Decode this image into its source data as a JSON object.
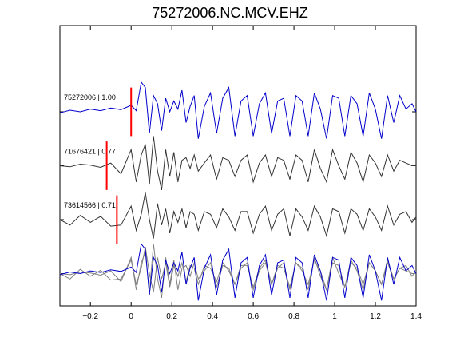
{
  "chart_data": {
    "type": "line",
    "title": "75272006.NC.MCV.EHZ",
    "xlabel": "",
    "ylabel": "",
    "xlim": [
      -0.35,
      1.4
    ],
    "ylim": [
      -0.6,
      4.6
    ],
    "x_ticks": [
      -0.2,
      0,
      0.2,
      0.4,
      0.6,
      0.8,
      1,
      1.2,
      1.4
    ],
    "x_tick_labels": [
      "−0.2",
      "0",
      "0.2",
      "0.4",
      "0.6",
      "0.8",
      "1",
      "1.2",
      "1.4"
    ],
    "y_ticks": [
      0,
      1,
      2,
      3,
      4
    ],
    "grid": false,
    "colors": {
      "primary": "#0000cc",
      "secondary": "#333333",
      "overlay": "#808080",
      "pick": "#ff0000"
    },
    "series": [
      {
        "name": "75272006",
        "label": "75272006 | 1.00",
        "offset": 3,
        "color": "#0000cc",
        "pick_x": 0.0,
        "x": [
          -0.35,
          -0.3,
          -0.25,
          -0.2,
          -0.15,
          -0.1,
          -0.05,
          0.0,
          0.025,
          0.05,
          0.07,
          0.09,
          0.11,
          0.13,
          0.15,
          0.17,
          0.19,
          0.21,
          0.23,
          0.25,
          0.27,
          0.29,
          0.31,
          0.33,
          0.36,
          0.39,
          0.42,
          0.45,
          0.48,
          0.51,
          0.54,
          0.57,
          0.6,
          0.63,
          0.66,
          0.69,
          0.72,
          0.75,
          0.78,
          0.81,
          0.84,
          0.87,
          0.9,
          0.93,
          0.96,
          0.99,
          1.02,
          1.05,
          1.08,
          1.11,
          1.14,
          1.17,
          1.2,
          1.23,
          1.26,
          1.29,
          1.32,
          1.35,
          1.38,
          1.4
        ],
        "y": [
          -0.02,
          0.03,
          0.0,
          0.05,
          0.02,
          0.07,
          0.04,
          0.12,
          0.02,
          0.55,
          0.45,
          -0.4,
          0.3,
          0.15,
          -0.35,
          0.25,
          0.0,
          0.2,
          0.05,
          0.4,
          -0.2,
          0.1,
          0.3,
          -0.5,
          0.1,
          0.35,
          -0.4,
          0.25,
          0.45,
          -0.45,
          0.2,
          0.3,
          -0.45,
          0.15,
          0.35,
          -0.4,
          0.2,
          0.25,
          -0.45,
          0.3,
          0.2,
          -0.45,
          0.35,
          0.05,
          -0.5,
          0.3,
          0.25,
          -0.45,
          0.3,
          0.15,
          -0.45,
          0.35,
          0.05,
          -0.5,
          0.3,
          -0.2,
          0.3,
          0.05,
          0.15,
          0.0
        ]
      },
      {
        "name": "71676421",
        "label": "71676421 | 0.77",
        "offset": 2,
        "color": "#333333",
        "pick_x": -0.12,
        "x": [
          -0.35,
          -0.3,
          -0.25,
          -0.2,
          -0.15,
          -0.1,
          -0.05,
          0.0,
          0.025,
          0.05,
          0.07,
          0.09,
          0.11,
          0.13,
          0.15,
          0.17,
          0.19,
          0.21,
          0.23,
          0.25,
          0.27,
          0.29,
          0.31,
          0.33,
          0.36,
          0.39,
          0.42,
          0.45,
          0.48,
          0.51,
          0.54,
          0.57,
          0.6,
          0.63,
          0.66,
          0.69,
          0.72,
          0.75,
          0.78,
          0.81,
          0.84,
          0.87,
          0.9,
          0.93,
          0.96,
          0.99,
          1.02,
          1.05,
          1.08,
          1.11,
          1.14,
          1.17,
          1.2,
          1.23,
          1.26,
          1.29,
          1.32,
          1.35,
          1.38,
          1.4
        ],
        "y": [
          0.0,
          -0.02,
          0.03,
          0.01,
          -0.03,
          0.05,
          -0.15,
          0.3,
          -0.3,
          0.2,
          0.4,
          -0.35,
          0.55,
          -0.1,
          -0.45,
          0.3,
          -0.2,
          0.25,
          -0.3,
          0.1,
          0.15,
          -0.05,
          0.2,
          -0.1,
          0.05,
          0.2,
          -0.25,
          0.15,
          0.1,
          -0.2,
          0.1,
          0.2,
          -0.3,
          0.05,
          0.2,
          -0.2,
          0.15,
          0.1,
          -0.25,
          0.2,
          0.1,
          -0.3,
          0.3,
          -0.05,
          -0.3,
          0.3,
          0.0,
          -0.25,
          0.25,
          0.05,
          -0.3,
          0.2,
          0.05,
          -0.2,
          0.2,
          -0.1,
          0.1,
          0.05,
          0.0,
          0.0
        ]
      },
      {
        "name": "73614566",
        "label": "73614566 | 0.71",
        "offset": 1,
        "color": "#333333",
        "pick_x": -0.07,
        "x": [
          -0.35,
          -0.3,
          -0.25,
          -0.2,
          -0.15,
          -0.1,
          -0.05,
          0.0,
          0.025,
          0.05,
          0.07,
          0.09,
          0.11,
          0.13,
          0.15,
          0.17,
          0.19,
          0.21,
          0.23,
          0.25,
          0.27,
          0.29,
          0.31,
          0.33,
          0.36,
          0.39,
          0.42,
          0.45,
          0.48,
          0.51,
          0.54,
          0.57,
          0.6,
          0.63,
          0.66,
          0.69,
          0.72,
          0.75,
          0.78,
          0.81,
          0.84,
          0.87,
          0.9,
          0.93,
          0.96,
          0.99,
          1.02,
          1.05,
          1.08,
          1.11,
          1.14,
          1.17,
          1.2,
          1.23,
          1.26,
          1.29,
          1.32,
          1.35,
          1.38,
          1.4
        ],
        "y": [
          0.0,
          -0.1,
          0.08,
          -0.05,
          0.06,
          -0.12,
          -0.1,
          0.25,
          -0.2,
          0.1,
          0.5,
          0.0,
          -0.35,
          0.3,
          -0.1,
          0.2,
          -0.25,
          0.15,
          -0.05,
          0.2,
          -0.15,
          0.15,
          0.1,
          -0.2,
          0.15,
          0.1,
          -0.15,
          0.2,
          0.05,
          -0.2,
          0.15,
          0.15,
          -0.25,
          0.1,
          0.25,
          -0.2,
          0.1,
          0.2,
          -0.3,
          0.2,
          0.05,
          -0.2,
          0.25,
          0.05,
          -0.3,
          0.2,
          0.15,
          -0.25,
          0.2,
          0.1,
          -0.2,
          0.2,
          0.05,
          -0.2,
          0.25,
          -0.1,
          0.1,
          0.15,
          -0.05,
          0.05
        ]
      }
    ],
    "overlay": {
      "offset": 0,
      "traces": [
        "73614566",
        "71676421",
        "75272006"
      ]
    }
  }
}
